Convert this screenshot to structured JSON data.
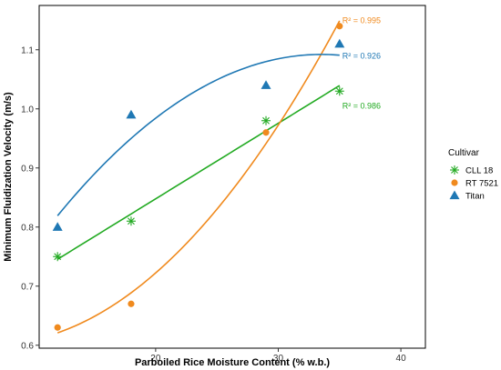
{
  "chart_data": {
    "type": "scatter",
    "xlabel": "Parboiled Rice Moisture Content (% w.b.)",
    "ylabel": "Minimum Fluidization Velocity (m/s)",
    "xlim": [
      10.5,
      42
    ],
    "ylim": [
      0.595,
      1.175
    ],
    "xticks": [
      20,
      30,
      40
    ],
    "yticks": [
      0.6,
      0.7,
      0.8,
      0.9,
      1.0,
      1.1
    ],
    "grid": false,
    "legend": {
      "title": "Cultivar",
      "position": "right"
    },
    "series": [
      {
        "name": "CLL 18",
        "color": "#22aa22",
        "marker": "asterisk",
        "x": [
          12,
          18,
          29,
          35
        ],
        "y": [
          0.75,
          0.81,
          0.98,
          1.03
        ],
        "fit": {
          "type": "linear",
          "r2_label": "R² = 0.986",
          "r2_at": [
            35,
            1.005
          ],
          "x_range": [
            12,
            35
          ]
        }
      },
      {
        "name": "RT 7521",
        "color": "#f08a1e",
        "marker": "circle",
        "x": [
          12,
          18,
          29,
          35
        ],
        "y": [
          0.63,
          0.67,
          0.96,
          1.14
        ],
        "fit": {
          "type": "quadratic",
          "r2_label": "R² = 0.995",
          "r2_at": [
            35,
            1.15
          ],
          "x_range": [
            12,
            35
          ]
        }
      },
      {
        "name": "Titan",
        "color": "#1f78b4",
        "marker": "triangle",
        "x": [
          12,
          18,
          29,
          35
        ],
        "y": [
          0.8,
          0.99,
          1.04,
          1.11
        ],
        "fit": {
          "type": "quadratic",
          "r2_label": "R² = 0.926",
          "r2_at": [
            35,
            1.09
          ],
          "x_range": [
            12,
            35
          ]
        }
      }
    ]
  }
}
